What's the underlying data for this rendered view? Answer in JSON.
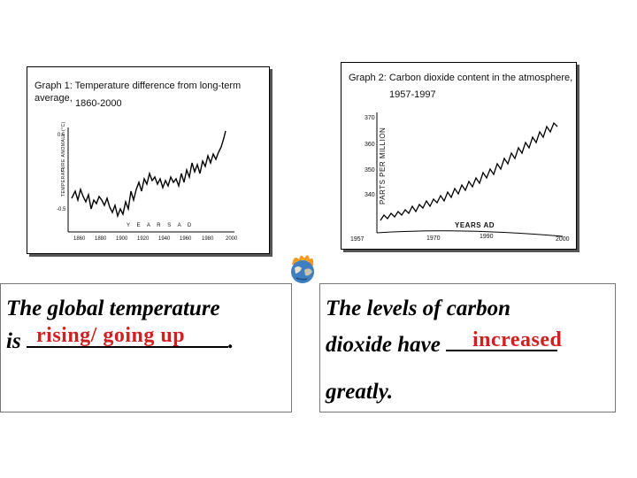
{
  "graph1": {
    "title_line1": "Graph 1:  Temperature difference from long-term average,",
    "title_line2": "1860-2000",
    "y_axis_label": "TEMPERATURE ANOMALY (°C)",
    "y_ticks": [
      "0.5",
      "0",
      "-0.5"
    ],
    "x_axis_label": "Y E A R S   A D",
    "x_ticks": [
      "1860",
      "1880",
      "1900",
      "1920",
      "1940",
      "1960",
      "1980",
      "2000"
    ]
  },
  "graph2": {
    "title_line1": "Graph 2:  Carbon dioxide content in the atmosphere,",
    "title_line2": "1957-1997",
    "y_axis_label": "PARTS PER MILLION",
    "y_ticks": [
      "370",
      "360",
      "350",
      "340"
    ],
    "x_axis_label": "YEARS AD",
    "x_ticks": [
      "1957",
      "1970",
      "1990",
      "2000"
    ]
  },
  "left_box": {
    "line1": "The global temperature",
    "line2_prefix": "is",
    "line2_suffix": ".",
    "answer": "rising/ going up"
  },
  "right_box": {
    "line1": "The levels of carbon",
    "line2_prefix": "dioxide have",
    "answer": "increased",
    "line3": "greatly."
  },
  "colors": {
    "answer": "#d12020",
    "box_border": "#777777"
  },
  "icons": {
    "globe": "burning-earth-icon"
  }
}
